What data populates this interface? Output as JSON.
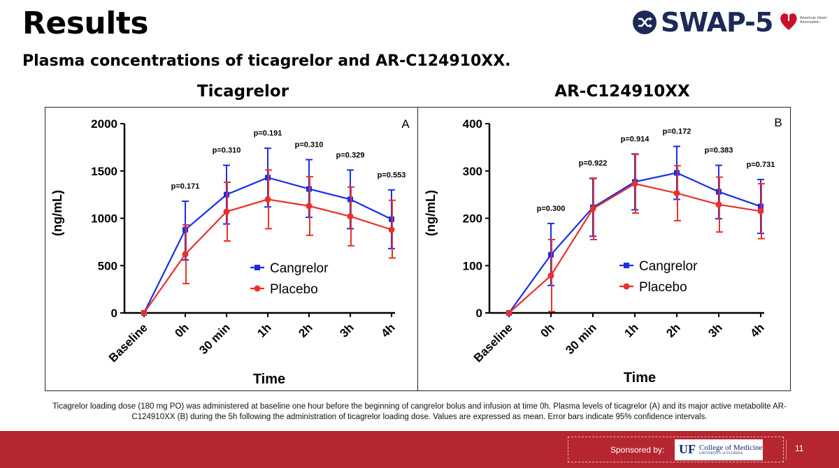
{
  "header": {
    "title": "Results",
    "subtitle": "Plasma concentrations of ticagrelor and AR-C124910XX."
  },
  "logos": {
    "swap_text": "SWAP-5",
    "aha_text": "American Heart Association."
  },
  "chart_data": [
    {
      "type": "line",
      "title": "Ticagrelor",
      "panel_label": "A",
      "xlabel": "Time",
      "ylabel": "(ng/mL)",
      "categories": [
        "Baseline",
        "0h",
        "30 min",
        "1h",
        "2h",
        "3h",
        "4h"
      ],
      "ylim": [
        0,
        2000
      ],
      "yticks": [
        "0",
        "500",
        "1000",
        "1500",
        "2000"
      ],
      "legend_position": "center-right",
      "series": [
        {
          "name": "Cangrelor",
          "color": "#1a2ee6",
          "values": [
            0,
            880,
            1250,
            1430,
            1310,
            1200,
            990
          ],
          "err_low": [
            0,
            560,
            940,
            1120,
            1010,
            890,
            680
          ],
          "err_high": [
            0,
            1180,
            1560,
            1740,
            1620,
            1510,
            1300
          ]
        },
        {
          "name": "Placebo",
          "color": "#e8312a",
          "values": [
            0,
            620,
            1070,
            1200,
            1130,
            1020,
            880
          ],
          "err_low": [
            0,
            310,
            760,
            890,
            820,
            710,
            580
          ],
          "err_high": [
            0,
            930,
            1380,
            1510,
            1440,
            1330,
            1190
          ]
        }
      ],
      "p_values": [
        "",
        "p=0.171",
        "p=0.310",
        "p=0.191",
        "p=0.310",
        "p=0.329",
        "p=0.553"
      ]
    },
    {
      "type": "line",
      "title": "AR-C124910XX",
      "panel_label": "B",
      "xlabel": "Time",
      "ylabel": "(ng/mL)",
      "categories": [
        "Baseline",
        "0h",
        "30 min",
        "1h",
        "2h",
        "3h",
        "4h"
      ],
      "ylim": [
        0,
        400
      ],
      "yticks": [
        "0",
        "100",
        "200",
        "300",
        "400"
      ],
      "legend_position": "center-right",
      "series": [
        {
          "name": "Cangrelor",
          "color": "#1a2ee6",
          "values": [
            0,
            123,
            223,
            277,
            296,
            256,
            225
          ],
          "err_low": [
            0,
            58,
            162,
            218,
            240,
            199,
            168
          ],
          "err_high": [
            0,
            189,
            284,
            336,
            352,
            312,
            282
          ]
        },
        {
          "name": "Placebo",
          "color": "#e8312a",
          "values": [
            0,
            79,
            220,
            273,
            253,
            229,
            215
          ],
          "err_low": [
            0,
            3,
            155,
            211,
            195,
            171,
            157
          ],
          "err_high": [
            0,
            155,
            285,
            335,
            311,
            287,
            273
          ]
        }
      ],
      "p_values": [
        "",
        "p=0.300",
        "p=0.922",
        "p=0.914",
        "p=0.172",
        "p=0.383",
        "p=0.731"
      ]
    }
  ],
  "caption": "Ticagrelor loading dose (180 mg PO) was administered at baseline one hour before the beginning of cangrelor bolus and infusion at time 0h. Plasma levels of ticagrelor (A) and its major active metabolite AR-C124910XX (B) during the 5h following the administration of ticagrelor loading dose. Values are expressed as mean. Error bars indicate 95% confidence intervals.",
  "footer": {
    "sponsor_label": "Sponsored by:",
    "uf_mark": "UF",
    "uf_college": "College of Medicine",
    "uf_university": "UNIVERSITY of FLORIDA",
    "page_number": "11"
  },
  "colors": {
    "footer_bg": "#b52630",
    "swap_navy": "#1c2a59"
  }
}
